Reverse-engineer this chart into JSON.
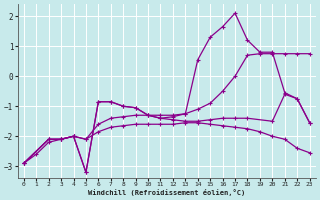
{
  "xlabel": "Windchill (Refroidissement éolien,°C)",
  "background_color": "#c8eaeb",
  "line_color": "#8b008b",
  "grid_color": "#ffffff",
  "xlim": [
    -0.5,
    23.5
  ],
  "ylim": [
    -3.4,
    2.4
  ],
  "yticks": [
    -3,
    -2,
    -1,
    0,
    1,
    2
  ],
  "xticks": [
    0,
    1,
    2,
    3,
    4,
    5,
    6,
    7,
    8,
    9,
    10,
    11,
    12,
    13,
    14,
    15,
    16,
    17,
    18,
    19,
    20,
    21,
    22,
    23
  ],
  "series": [
    {
      "x": [
        0,
        1,
        2,
        3,
        4,
        5,
        6,
        7,
        8,
        9,
        10,
        11,
        12,
        13,
        14,
        15,
        16,
        17,
        18,
        19,
        20,
        21,
        22,
        23
      ],
      "y": [
        -2.9,
        -2.6,
        -2.2,
        -2.1,
        -2.0,
        -2.1,
        -1.85,
        -1.7,
        -1.65,
        -1.6,
        -1.6,
        -1.6,
        -1.6,
        -1.55,
        -1.55,
        -1.6,
        -1.65,
        -1.7,
        -1.75,
        -1.85,
        -2.0,
        -2.1,
        -2.4,
        -2.55
      ]
    },
    {
      "x": [
        0,
        2,
        3,
        4,
        5,
        6,
        7,
        8,
        9,
        10,
        11,
        12,
        13,
        14,
        15,
        16,
        17,
        18,
        19,
        20,
        21,
        22,
        23
      ],
      "y": [
        -2.9,
        -2.1,
        -2.1,
        -2.0,
        -2.1,
        -1.6,
        -1.4,
        -1.35,
        -1.3,
        -1.3,
        -1.3,
        -1.3,
        -1.25,
        -1.1,
        -0.9,
        -0.5,
        0.0,
        0.7,
        0.75,
        0.75,
        0.75,
        0.75,
        0.75
      ]
    },
    {
      "x": [
        0,
        2,
        3,
        4,
        5,
        6,
        7,
        8,
        9,
        10,
        11,
        12,
        13,
        14,
        15,
        16,
        17,
        18,
        20,
        21,
        22,
        23
      ],
      "y": [
        -2.9,
        -2.1,
        -2.1,
        -2.0,
        -3.2,
        -0.85,
        -0.85,
        -1.0,
        -1.05,
        -1.3,
        -1.4,
        -1.45,
        -1.5,
        -1.5,
        -1.45,
        -1.4,
        -1.4,
        -1.4,
        -1.5,
        -0.6,
        -0.75,
        -1.55
      ]
    },
    {
      "x": [
        0,
        2,
        3,
        4,
        5,
        6,
        7,
        8,
        9,
        10,
        11,
        12,
        13,
        14,
        15,
        16,
        17,
        18,
        19,
        20,
        21,
        22,
        23
      ],
      "y": [
        -2.9,
        -2.1,
        -2.1,
        -2.0,
        -3.2,
        -0.85,
        -0.85,
        -1.0,
        -1.05,
        -1.3,
        -1.4,
        -1.35,
        -1.25,
        0.55,
        1.3,
        1.65,
        2.1,
        1.2,
        0.8,
        0.8,
        -0.55,
        -0.75,
        -1.55
      ]
    }
  ]
}
